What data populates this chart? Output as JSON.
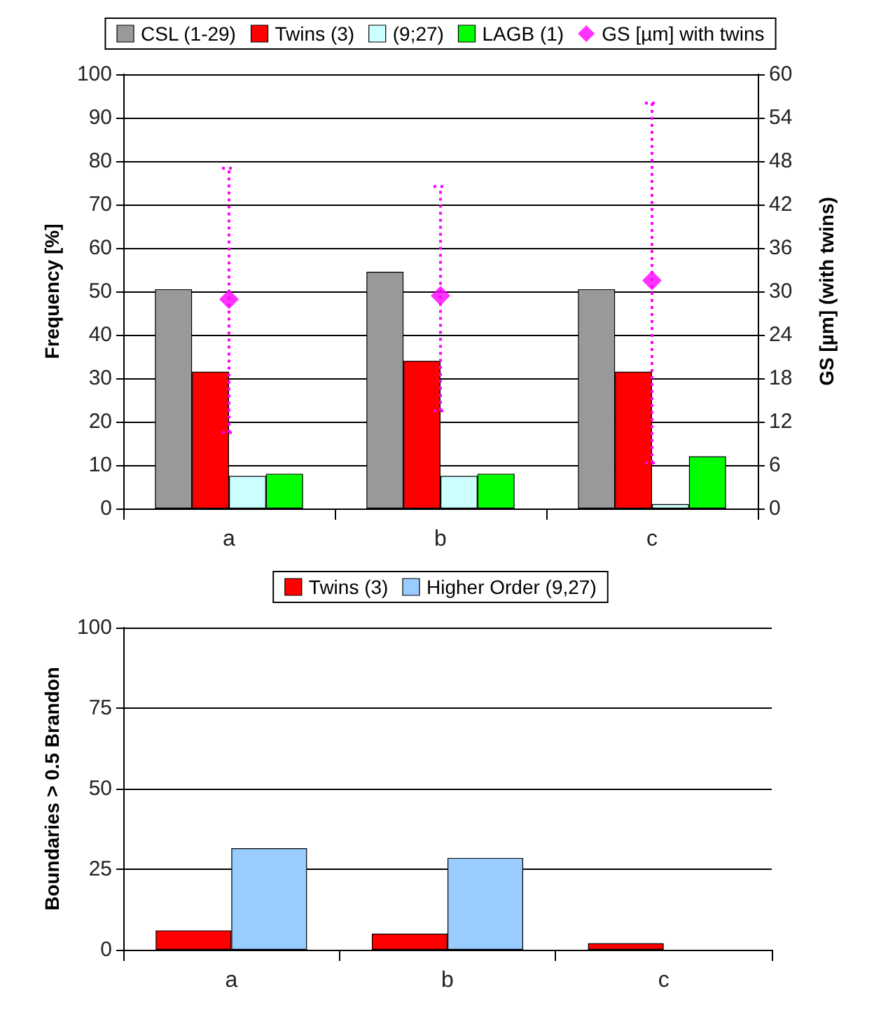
{
  "chart_data": [
    {
      "type": "bar",
      "ylabel": "Frequency [%]",
      "y2label": "GS [µm] (with twins)",
      "categories": [
        "a",
        "b",
        "c"
      ],
      "ylim": [
        0,
        100
      ],
      "yticks": [
        0,
        10,
        20,
        30,
        40,
        50,
        60,
        70,
        80,
        90,
        100
      ],
      "y2lim": [
        0,
        60
      ],
      "y2ticks": [
        0,
        6,
        12,
        18,
        24,
        30,
        36,
        42,
        48,
        54,
        60
      ],
      "grid": "y",
      "legend": "top",
      "series": [
        {
          "name": "CSL (1-29)",
          "color": "#999999",
          "values": [
            50.5,
            54.5,
            50.5
          ]
        },
        {
          "name": "Twins (3)",
          "color": "#ff0000",
          "values": [
            31.5,
            34,
            31.5
          ]
        },
        {
          "name": "(9;27)",
          "color": "#ccffff",
          "values": [
            7.5,
            7.5,
            1
          ]
        },
        {
          "name": "LAGB (1)",
          "color": "#00ff00",
          "values": [
            8,
            8,
            12
          ]
        },
        {
          "name": "GS [µm] with twins",
          "type": "scatter",
          "axis": "y2",
          "marker": "diamond",
          "color": "#ff00ff",
          "x": [
            "a",
            "b",
            "c"
          ],
          "values": [
            28.9,
            29.4,
            31.5
          ],
          "errors": [
            [
              10.5,
              47
            ],
            [
              13.5,
              44.5
            ],
            [
              6.3,
              56
            ]
          ]
        }
      ]
    },
    {
      "type": "bar",
      "ylabel": "Boundaries > 0.5 Brandon",
      "categories": [
        "a",
        "b",
        "c"
      ],
      "ylim": [
        0,
        100
      ],
      "yticks": [
        0,
        25,
        50,
        75,
        100
      ],
      "grid": "y",
      "legend": "top",
      "series": [
        {
          "name": "Twins (3)",
          "color": "#ff0000",
          "values": [
            6,
            5,
            2
          ]
        },
        {
          "name": "Higher Order (9,27)",
          "color": "#99ccff",
          "values": [
            31.5,
            28.5,
            null
          ]
        }
      ]
    }
  ]
}
